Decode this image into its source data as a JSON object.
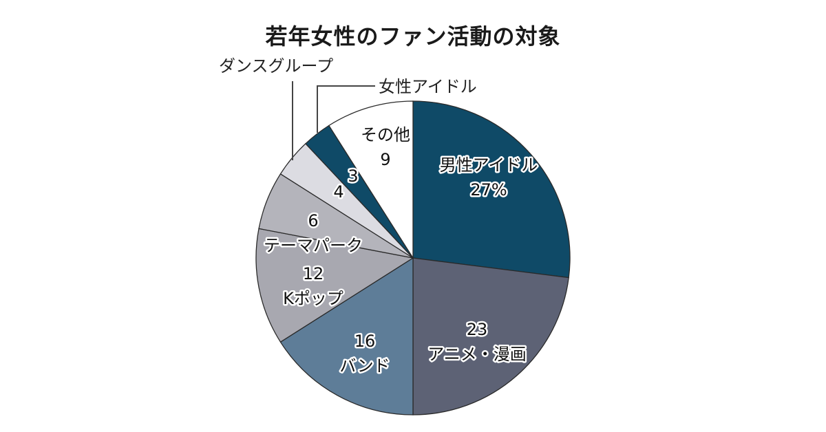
{
  "chart_data": {
    "type": "pie",
    "title": "若年女性のファン活動の対象",
    "unit": "%",
    "start_angle_deg": 0,
    "direction": "clockwise",
    "slices": [
      {
        "label": "男性アイドル",
        "value": 27,
        "display": "27%",
        "color": "#0f4a67"
      },
      {
        "label": "アニメ・漫画",
        "value": 23,
        "display": "23",
        "color": "#5d6275"
      },
      {
        "label": "バンド",
        "value": 16,
        "display": "16",
        "color": "#5e7d98"
      },
      {
        "label": "Kポップ",
        "value": 12,
        "display": "12",
        "color": "#a8a8b0"
      },
      {
        "label": "テーマパーク",
        "value": 6,
        "display": "6",
        "color": "#b4b4bb"
      },
      {
        "label": "ダンスグループ",
        "value": 4,
        "display": "4",
        "color": "#dcdce2"
      },
      {
        "label": "女性アイドル",
        "value": 3,
        "display": "3",
        "color": "#0f4a67"
      },
      {
        "label": "その他",
        "value": 9,
        "display": "9",
        "color": "#ffffff"
      }
    ],
    "legend": "none (labels placed on slices / via leader lines)"
  },
  "labels": {
    "title": "若年女性のファン活動の対象",
    "dance_group": "ダンスグループ",
    "female_idol": "女性アイドル"
  }
}
